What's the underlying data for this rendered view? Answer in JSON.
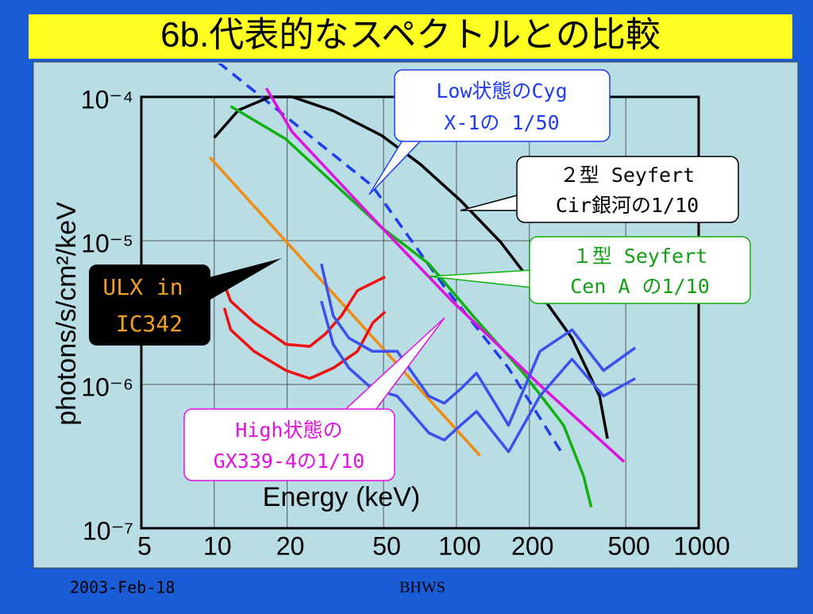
{
  "chart_data": {
    "type": "line",
    "title": "6b.代表的なスペクトルとの比較",
    "xlabel": "Energy (keV)",
    "ylabel": "photons/s/cm²/keV",
    "xlog": true,
    "ylog": true,
    "grid": true,
    "xlim": [
      5,
      1000
    ],
    "xticks": [
      5,
      10,
      20,
      50,
      100,
      200,
      500,
      1000
    ],
    "ylim": [
      1e-07,
      0.0001
    ],
    "yticks": [
      {
        "value": 1e-07,
        "label": "10⁻⁷"
      },
      {
        "value": 1e-06,
        "label": "10⁻⁶"
      },
      {
        "value": 1e-05,
        "label": "10⁻⁵"
      },
      {
        "value": 0.0001,
        "label": "10⁻⁴"
      }
    ],
    "series": [
      {
        "label": [
          "Low状態のCyg",
          "X-1の 1/50"
        ],
        "color": "#1e3cf0",
        "dashed": true,
        "x": [
          10.4,
          45,
          89,
          164,
          277
        ],
        "values": [
          0.000174,
          2.4e-05,
          4.8e-06,
          1.3e-06,
          3.2e-07
        ]
      },
      {
        "label": [
          "２型 Seyfert",
          "Cir銀河の1/10"
        ],
        "color": "#000000",
        "x": [
          10,
          12.6,
          17,
          21,
          31,
          49,
          71,
          104,
          152,
          221,
          300,
          390,
          420
        ],
        "values": [
          5.2e-05,
          8.1e-05,
          0.0001,
          0.0001,
          8e-05,
          5.4e-05,
          3.4e-05,
          1.9e-05,
          9.8e-06,
          4.3e-06,
          2.1e-06,
          8.3e-07,
          4.2e-07
        ]
      },
      {
        "label": [
          "１型 Seyfert",
          "Cen A の1/10"
        ],
        "color": "#10b010",
        "x": [
          11.7,
          19.7,
          49,
          77,
          117,
          189,
          277,
          335,
          360
        ],
        "values": [
          8.6e-05,
          5.1e-05,
          1.24e-05,
          6.9e-06,
          3e-06,
          1.2e-06,
          5.2e-07,
          2.3e-07,
          1.4e-07
        ]
      },
      {
        "label": [
          "High状態の",
          "GX339-4の1/10"
        ],
        "color": "#e010e0",
        "x": [
          16.4,
          21,
          49,
          96,
          221,
          492
        ],
        "values": [
          0.000115,
          5.7e-05,
          1.24e-05,
          3.8e-06,
          9.9e-07,
          2.9e-07
        ]
      },
      {
        "label": [
          "ULX in",
          "IC342"
        ],
        "color": "#f08c10",
        "x": [
          9.6,
          125
        ],
        "values": [
          3.8e-05,
          3.2e-07
        ]
      },
      {
        "color": "#f01010",
        "x": [
          10.8,
          11.7,
          14.6,
          19.8,
          24.8,
          28.8,
          33.5,
          39,
          45.3,
          50.8
        ],
        "values": [
          5.4e-06,
          3.8e-06,
          2.7e-06,
          1.9e-06,
          1.84e-06,
          2.25e-06,
          3e-06,
          4.5e-06,
          5.1e-06,
          5.6e-06
        ]
      },
      {
        "color": "#f01010",
        "x": [
          11,
          11.7,
          14.6,
          19.8,
          24.8,
          31,
          39,
          45.3,
          50.8
        ],
        "values": [
          3.4e-06,
          2.4e-06,
          1.7e-06,
          1.25e-06,
          1.1e-06,
          1.3e-06,
          1.7e-06,
          2.7e-06,
          3.2e-06
        ]
      },
      {
        "color": "#3c50f0",
        "x": [
          27.7,
          31,
          36,
          45,
          56.9,
          76.9,
          89,
          104,
          121,
          164,
          221,
          300,
          405,
          547
        ],
        "values": [
          6.9e-06,
          3e-06,
          2.1e-06,
          1.7e-06,
          1.7e-06,
          8.3e-07,
          7.4e-07,
          9.3e-07,
          1.2e-06,
          5.2e-07,
          1.7e-06,
          2.4e-06,
          1.25e-06,
          1.8e-06
        ]
      },
      {
        "color": "#3c50f0",
        "x": [
          27.7,
          31,
          36,
          45,
          56.9,
          76.9,
          89,
          104,
          121,
          164,
          221,
          300,
          405,
          547
        ],
        "values": [
          3.8e-06,
          1.9e-06,
          1.3e-06,
          9.3e-07,
          8.3e-07,
          4.6e-07,
          4.1e-07,
          5.2e-07,
          6.5e-07,
          3.4e-07,
          8.3e-07,
          1.5e-06,
          8.3e-07,
          1.1e-06
        ]
      }
    ]
  },
  "footer": {
    "date": "2003-Feb-18",
    "event": "BHWS"
  }
}
